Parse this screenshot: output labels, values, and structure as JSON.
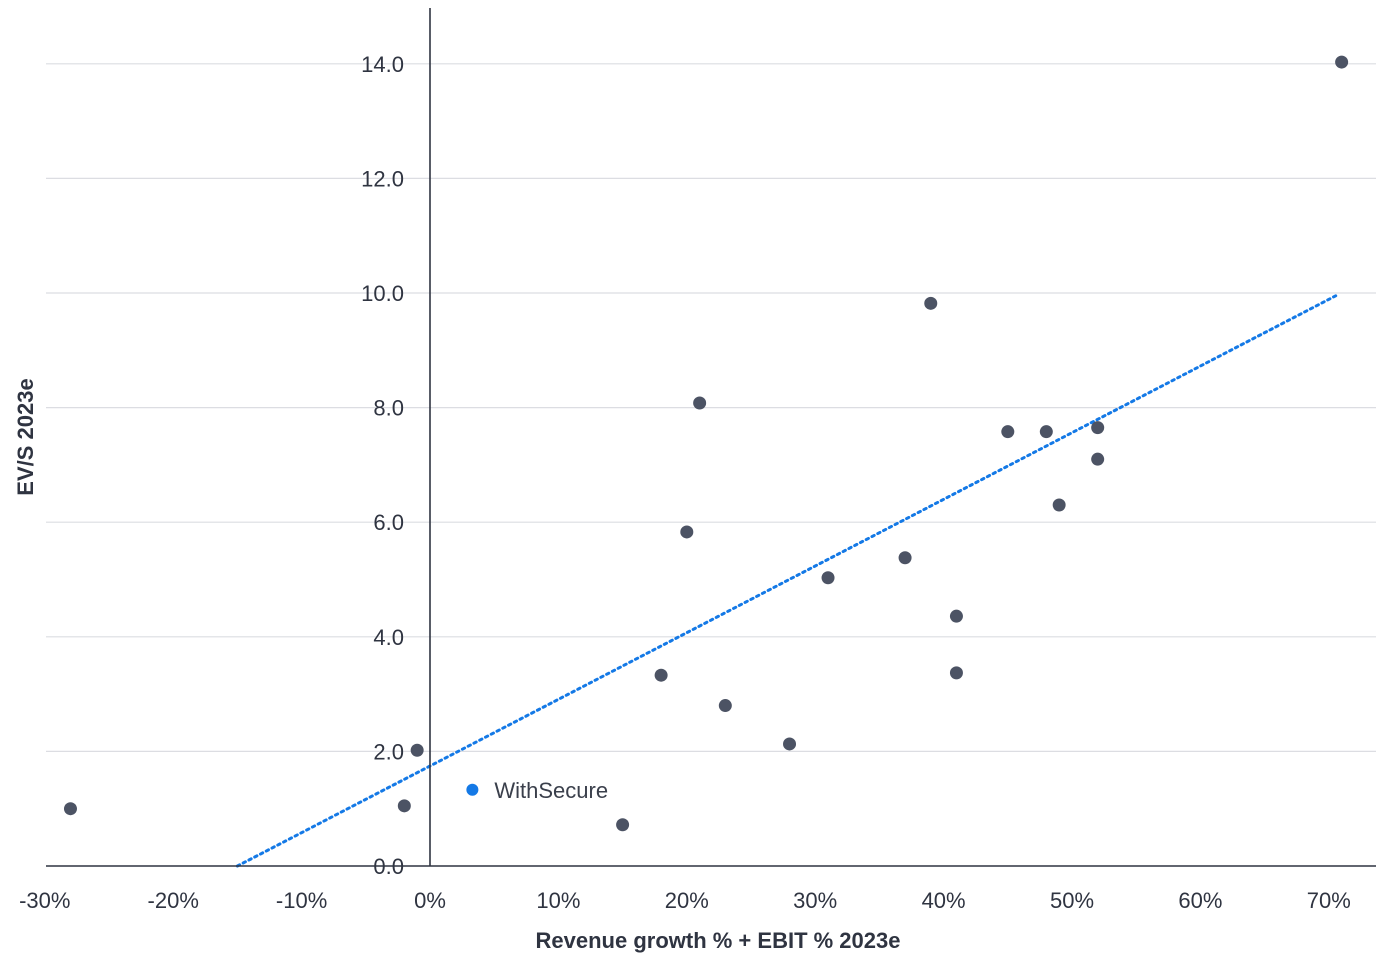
{
  "chart_data": {
    "type": "scatter",
    "title": "",
    "xlabel": "Revenue growth % + EBIT % 2023e",
    "ylabel": "EV/S 2023e",
    "xlim": [
      -30,
      74
    ],
    "ylim": [
      0,
      15
    ],
    "x_ticks": [
      -30,
      -20,
      -10,
      0,
      10,
      20,
      30,
      40,
      50,
      60,
      70
    ],
    "x_tick_labels": [
      "-30%",
      "-20%",
      "-10%",
      "0%",
      "10%",
      "20%",
      "30%",
      "40%",
      "50%",
      "60%",
      "70%"
    ],
    "y_ticks": [
      0,
      2,
      4,
      6,
      8,
      10,
      12,
      14
    ],
    "y_tick_labels": [
      "0.0",
      "2.0",
      "4.0",
      "6.0",
      "8.0",
      "10.0",
      "12.0",
      "14.0"
    ],
    "grid": "horizontal",
    "legend": "none",
    "points": [
      {
        "x": -28,
        "y": 1.0
      },
      {
        "x": -2,
        "y": 1.05
      },
      {
        "x": -1,
        "y": 2.02
      },
      {
        "x": 15,
        "y": 0.72
      },
      {
        "x": 18,
        "y": 3.33
      },
      {
        "x": 20,
        "y": 5.83
      },
      {
        "x": 21,
        "y": 8.08
      },
      {
        "x": 23,
        "y": 2.8
      },
      {
        "x": 28,
        "y": 2.13
      },
      {
        "x": 31,
        "y": 5.03
      },
      {
        "x": 37,
        "y": 5.38
      },
      {
        "x": 39,
        "y": 9.82
      },
      {
        "x": 41,
        "y": 4.36
      },
      {
        "x": 41,
        "y": 3.37
      },
      {
        "x": 45,
        "y": 7.58
      },
      {
        "x": 48,
        "y": 7.58
      },
      {
        "x": 49,
        "y": 6.3
      },
      {
        "x": 52,
        "y": 7.65
      },
      {
        "x": 52,
        "y": 7.1
      },
      {
        "x": 71,
        "y": 14.03
      }
    ],
    "highlight": {
      "label": "WithSecure",
      "x": 3.3,
      "y": 1.33
    },
    "trendline": {
      "style": "dotted",
      "x": [
        -15,
        70.7
      ],
      "y": [
        0,
        9.97
      ]
    },
    "colors": {
      "points": "#4c5364",
      "highlight": "#1479e6",
      "trendline": "#1479e6",
      "grid": "#dcdde2",
      "axis": "#2f3441",
      "text": "#2f3441"
    }
  }
}
